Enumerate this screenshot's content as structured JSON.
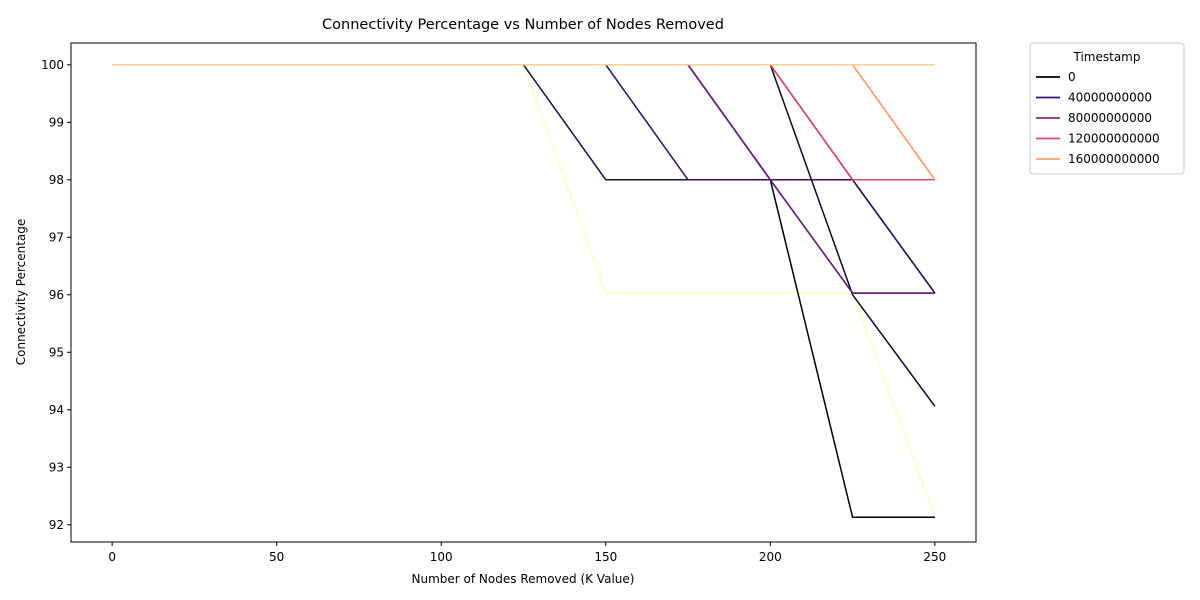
{
  "chart_data": {
    "type": "line",
    "title": "Connectivity Percentage vs Number of Nodes Removed",
    "xlabel": "Number of Nodes Removed (K Value)",
    "ylabel": "Connectivity Percentage",
    "xlim": [
      -12.5,
      262.5
    ],
    "ylim": [
      91.7,
      100.38
    ],
    "xticks": [
      0,
      50,
      100,
      150,
      200,
      250
    ],
    "yticks": [
      92,
      93,
      94,
      95,
      96,
      97,
      98,
      99,
      100
    ],
    "grid": false,
    "legend": {
      "title": "Timestamp",
      "placement": "outside-right",
      "entries": [
        {
          "label": "0",
          "color": "#000004"
        },
        {
          "label": "40000000000",
          "color": "#3b0f70"
        },
        {
          "label": "80000000000",
          "color": "#8c2981"
        },
        {
          "label": "120000000000",
          "color": "#de4968"
        },
        {
          "label": "160000000000",
          "color": "#fe9f6d"
        }
      ]
    },
    "series": [
      {
        "color": "#fcfdbf",
        "x": [
          0,
          125,
          150,
          175,
          200,
          225,
          250
        ],
        "y": [
          100,
          100,
          96.03,
          96.03,
          96.03,
          96.03,
          92.14
        ]
      },
      {
        "color": "#000004",
        "x": [
          0,
          175,
          200,
          225,
          250
        ],
        "y": [
          100,
          100,
          98,
          92.13,
          92.13
        ]
      },
      {
        "color": "#0d0829",
        "x": [
          0,
          200,
          225,
          250
        ],
        "y": [
          100,
          100,
          96,
          94.06
        ]
      },
      {
        "color": "#1b1044",
        "x": [
          0,
          125,
          150,
          175,
          200,
          225,
          250
        ],
        "y": [
          100,
          100,
          98,
          98,
          98,
          98,
          96.03
        ]
      },
      {
        "color": "#2f0f60",
        "x": [
          0,
          150,
          175,
          200,
          225,
          250
        ],
        "y": [
          100,
          100,
          98,
          98,
          98,
          96.03
        ]
      },
      {
        "color": "#4a1079",
        "x": [
          0,
          175,
          200,
          225,
          250
        ],
        "y": [
          100,
          100,
          98,
          96.03,
          96.03
        ]
      },
      {
        "color": "#6a1c81",
        "x": [
          0,
          175,
          200,
          225,
          250
        ],
        "y": [
          100,
          100,
          98,
          96.03,
          96.03
        ]
      },
      {
        "color": "#8c2981",
        "x": [
          0,
          200,
          225,
          250
        ],
        "y": [
          100,
          100,
          98,
          98
        ]
      },
      {
        "color": "#b5367a",
        "x": [
          0,
          200,
          225,
          250
        ],
        "y": [
          100,
          100,
          98,
          98
        ]
      },
      {
        "color": "#de4968",
        "x": [
          0,
          200,
          225,
          250
        ],
        "y": [
          100,
          100,
          98,
          98
        ]
      },
      {
        "color": "#f7705c",
        "x": [
          0,
          225,
          250
        ],
        "y": [
          100,
          100,
          98
        ]
      },
      {
        "color": "#fe9f6d",
        "x": [
          0,
          225,
          250
        ],
        "y": [
          100,
          100,
          98
        ]
      },
      {
        "color": "#fecf92",
        "x": [
          0,
          250
        ],
        "y": [
          100,
          100
        ]
      }
    ]
  }
}
